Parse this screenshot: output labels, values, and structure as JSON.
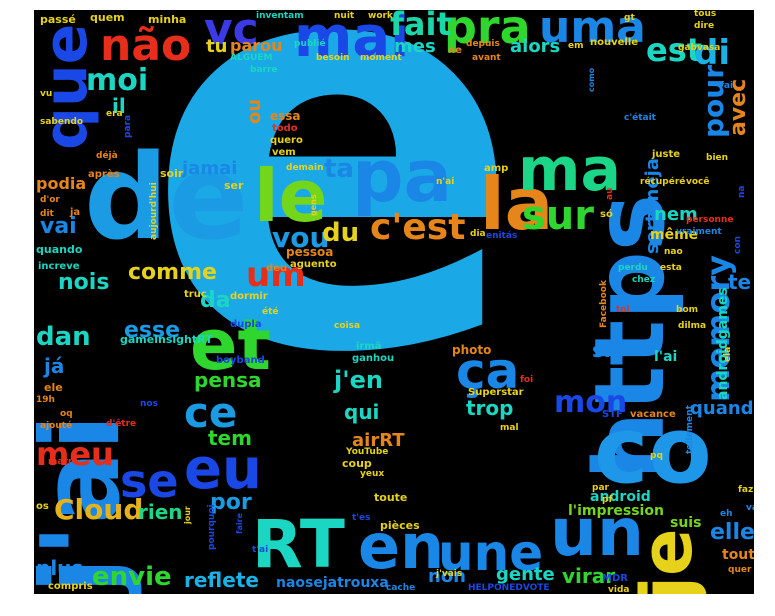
{
  "words": [
    {
      "text": "ê",
      "color": "#1aa9e6"
    },
    {
      "text": "é",
      "color": "#1aa9e6"
    },
    {
      "text": "https",
      "color": "#1a86e6"
    },
    {
      "text": "co",
      "color": "#1f97e8"
    },
    {
      "text": "j'ai",
      "color": "#1a86e6"
    },
    {
      "text": "de",
      "color": "#1a9be3"
    },
    {
      "text": "que",
      "color": "#1a48e6"
    },
    {
      "text": "je",
      "color": "#e6d21a"
    },
    {
      "text": "pa",
      "color": "#1a86e6"
    },
    {
      "text": "le",
      "color": "#74d61a"
    },
    {
      "text": "la",
      "color": "#e6861a"
    },
    {
      "text": "ma",
      "color": "#1ad686"
    },
    {
      "text": "mai",
      "color": "#1a48e6"
    },
    {
      "text": "pra",
      "color": "#2ed62e"
    },
    {
      "text": "uma",
      "color": "#1a86e6"
    },
    {
      "text": "não",
      "color": "#e62e1a"
    },
    {
      "text": "vc",
      "color": "#3a3ae6"
    },
    {
      "text": "fait",
      "color": "#1ad6a9"
    },
    {
      "text": "est",
      "color": "#1ad6c2"
    },
    {
      "text": "di",
      "color": "#1ab2e6"
    },
    {
      "text": "et",
      "color": "#2ed62e"
    },
    {
      "text": "RT",
      "color": "#1ad6c2"
    },
    {
      "text": "un",
      "color": "#1a86e6"
    },
    {
      "text": "en",
      "color": "#1a86e6"
    },
    {
      "text": "une",
      "color": "#1a86e6"
    },
    {
      "text": "eu",
      "color": "#1a48e6"
    },
    {
      "text": "se",
      "color": "#1a48e6"
    },
    {
      "text": "ce",
      "color": "#1a9be3"
    },
    {
      "text": "ça",
      "color": "#1a86e6"
    },
    {
      "text": "c'est",
      "color": "#e6861a"
    },
    {
      "text": "sur",
      "color": "#2ed62e"
    },
    {
      "text": "um",
      "color": "#e62e1a"
    },
    {
      "text": "vou",
      "color": "#1a9be3"
    },
    {
      "text": "du",
      "color": "#e6d21a"
    },
    {
      "text": "ta",
      "color": "#1a86e6"
    },
    {
      "text": "moi",
      "color": "#1ad6c2"
    },
    {
      "text": "mon",
      "color": "#1a48e6"
    },
    {
      "text": "memory",
      "color": "#1a86e6"
    },
    {
      "text": "pour",
      "color": "#1a86e6"
    },
    {
      "text": "avec",
      "color": "#e6861a"
    },
    {
      "text": "meu",
      "color": "#e62e1a"
    },
    {
      "text": "Cloud",
      "color": "#e6b21a"
    },
    {
      "text": "rien",
      "color": "#1ad686"
    },
    {
      "text": "envie",
      "color": "#2ed62e"
    },
    {
      "text": "reflete",
      "color": "#1ab2e6"
    },
    {
      "text": "por",
      "color": "#1a9be3"
    },
    {
      "text": "tem",
      "color": "#2ed62e"
    },
    {
      "text": "pensa",
      "color": "#2ed62e"
    },
    {
      "text": "da",
      "color": "#1ad6c2"
    },
    {
      "text": "esse",
      "color": "#1a9be3"
    },
    {
      "text": "comme",
      "color": "#e6d21a"
    },
    {
      "text": "nois",
      "color": "#1ad6c2"
    },
    {
      "text": "dan",
      "color": "#1ad6c2"
    },
    {
      "text": "já",
      "color": "#1a86e6"
    },
    {
      "text": "vai",
      "color": "#1a86e6"
    },
    {
      "text": "podia",
      "color": "#e6861a"
    },
    {
      "text": "jamai",
      "color": "#1a86e6"
    },
    {
      "text": "tu",
      "color": "#e6d21a"
    },
    {
      "text": "parou",
      "color": "#e6861a"
    },
    {
      "text": "mes",
      "color": "#1ad6c2"
    },
    {
      "text": "alors",
      "color": "#1ad6c2"
    },
    {
      "text": "sertaneja",
      "color": "#1a86e6"
    },
    {
      "text": "j'en",
      "color": "#1ad6c2"
    },
    {
      "text": "qui",
      "color": "#1ad6c2"
    },
    {
      "text": "trop",
      "color": "#1ad6c2"
    },
    {
      "text": "non",
      "color": "#1a86e6"
    },
    {
      "text": "gente",
      "color": "#1ad6c2"
    },
    {
      "text": "virar",
      "color": "#2ed62e"
    },
    {
      "text": "si",
      "color": "#1a86e6"
    },
    {
      "text": "quand",
      "color": "#1a86e6"
    },
    {
      "text": "elle",
      "color": "#1a86e6"
    },
    {
      "text": "te",
      "color": "#1a86e6"
    },
    {
      "text": "nem",
      "color": "#1ad6c2"
    },
    {
      "text": "même",
      "color": "#e6d21a"
    },
    {
      "text": "plus",
      "color": "#1a86e6"
    },
    {
      "text": "naosejatrouxa",
      "color": "#1a86e6"
    },
    {
      "text": "airRT",
      "color": "#e6861a"
    },
    {
      "text": "l'impression",
      "color": "#74d61a"
    },
    {
      "text": "suis",
      "color": "#74d61a"
    },
    {
      "text": "android",
      "color": "#1ad6c2"
    },
    {
      "text": "tout",
      "color": "#e6861a"
    },
    {
      "text": "androidgames",
      "color": "#1ad6c2"
    },
    {
      "text": "l'ai",
      "color": "#1ad6c2"
    },
    {
      "text": "il",
      "color": "#1ad6c2"
    },
    {
      "text": "ou",
      "color": "#e6861a"
    },
    {
      "text": "essa",
      "color": "#e6861a"
    },
    {
      "text": "todo",
      "color": "#e62e1a"
    },
    {
      "text": "quero",
      "color": "#e6d21a"
    },
    {
      "text": "vem",
      "color": "#e6d21a"
    },
    {
      "text": "ser",
      "color": "#e6d21a"
    },
    {
      "text": "soir",
      "color": "#e6d21a"
    },
    {
      "text": "après",
      "color": "#e6861a"
    },
    {
      "text": "déjà",
      "color": "#e6861a"
    },
    {
      "text": "d'or",
      "color": "#e6861a"
    },
    {
      "text": "ja",
      "color": "#e6861a"
    },
    {
      "text": "dit",
      "color": "#e6861a"
    },
    {
      "text": "quando",
      "color": "#1ad6c2"
    },
    {
      "text": "increve",
      "color": "#1ad6c2"
    },
    {
      "text": "deu",
      "color": "#e6861a"
    },
    {
      "text": "pessoa",
      "color": "#e6861a"
    },
    {
      "text": "aguento",
      "color": "#e6d21a"
    },
    {
      "text": "dormir",
      "color": "#e6d21a"
    },
    {
      "text": "truc",
      "color": "#e6d21a"
    },
    {
      "text": "dupla",
      "color": "#1a48e6"
    },
    {
      "text": "été",
      "color": "#e6d21a"
    },
    {
      "text": "gameinsightRT",
      "color": "#1ad6c2"
    },
    {
      "text": "boyband",
      "color": "#1a48e6"
    },
    {
      "text": "ele",
      "color": "#e6861a"
    },
    {
      "text": "19h",
      "color": "#e6861a"
    },
    {
      "text": "oq",
      "color": "#e6861a"
    },
    {
      "text": "ajouté",
      "color": "#e6861a"
    },
    {
      "text": "d'être",
      "color": "#e62e1a"
    },
    {
      "text": "marre",
      "color": "#e62e1a"
    },
    {
      "text": "os",
      "color": "#e6d21a"
    },
    {
      "text": "compris",
      "color": "#e6d21a"
    },
    {
      "text": "cache",
      "color": "#1a86e6"
    },
    {
      "text": "HELPONEDVOTE",
      "color": "#1a48e6"
    },
    {
      "text": "j'vais",
      "color": "#e6d21a"
    },
    {
      "text": "MDR",
      "color": "#1a48e6"
    },
    {
      "text": "vida",
      "color": "#e6d21a"
    },
    {
      "text": "quer",
      "color": "#e6861a"
    },
    {
      "text": "pièces",
      "color": "#e6d21a"
    },
    {
      "text": "toute",
      "color": "#e6d21a"
    },
    {
      "text": "t'es",
      "color": "#1a48e6"
    },
    {
      "text": "t'ai",
      "color": "#1a48e6"
    },
    {
      "text": "coup",
      "color": "#e6d21a"
    },
    {
      "text": "YouTube",
      "color": "#e6d21a"
    },
    {
      "text": "yeux",
      "color": "#e6d21a"
    },
    {
      "text": "irmã",
      "color": "#1ad6c2"
    },
    {
      "text": "ganhou",
      "color": "#1ad6c2"
    },
    {
      "text": "coisa",
      "color": "#e6d21a"
    },
    {
      "text": "photo",
      "color": "#e6861a"
    },
    {
      "text": "Superstar",
      "color": "#e6d21a"
    },
    {
      "text": "mal",
      "color": "#e6d21a"
    },
    {
      "text": "foi",
      "color": "#e62e1a"
    },
    {
      "text": "STF",
      "color": "#1a48e6"
    },
    {
      "text": "vacance",
      "color": "#e6861a"
    },
    {
      "text": "pq",
      "color": "#e6d21a"
    },
    {
      "text": "faz",
      "color": "#e6d21a"
    },
    {
      "text": "eh",
      "color": "#1a86e6"
    },
    {
      "text": "va",
      "color": "#1a86e6"
    },
    {
      "text": "par",
      "color": "#e6d21a"
    },
    {
      "text": "pf",
      "color": "#e6d21a"
    },
    {
      "text": "ela",
      "color": "#e6d21a"
    },
    {
      "text": "dilma",
      "color": "#e6d21a"
    },
    {
      "text": "bom",
      "color": "#e6d21a"
    },
    {
      "text": "toi",
      "color": "#e62e1a"
    },
    {
      "text": "perdu",
      "color": "#1ad6c2"
    },
    {
      "text": "chez",
      "color": "#1ad6c2"
    },
    {
      "text": "nao",
      "color": "#e6d21a"
    },
    {
      "text": "esta",
      "color": "#e6d21a"
    },
    {
      "text": "Facebook",
      "color": "#e6861a"
    },
    {
      "text": "vraiment",
      "color": "#1a86e6"
    },
    {
      "text": "con",
      "color": "#1a48e6"
    },
    {
      "text": "personne",
      "color": "#e62e1a"
    },
    {
      "text": "juste",
      "color": "#e6d21a"
    },
    {
      "text": "bien",
      "color": "#e6d21a"
    },
    {
      "text": "récupéré",
      "color": "#e6d21a"
    },
    {
      "text": "você",
      "color": "#e6d21a"
    },
    {
      "text": "na",
      "color": "#1a48e6"
    },
    {
      "text": "só",
      "color": "#e6d21a"
    },
    {
      "text": "au",
      "color": "#e62e1a"
    },
    {
      "text": "fai",
      "color": "#1a86e6"
    },
    {
      "text": "c'était",
      "color": "#1a86e6"
    },
    {
      "text": "como",
      "color": "#1a86e6"
    },
    {
      "text": "amp",
      "color": "#e6d21a"
    },
    {
      "text": "n'ai",
      "color": "#e6d21a"
    },
    {
      "text": "dia",
      "color": "#e6d21a"
    },
    {
      "text": "enitás",
      "color": "#1a48e6"
    },
    {
      "text": "gens",
      "color": "#e6d21a"
    },
    {
      "text": "demain",
      "color": "#e6d21a"
    },
    {
      "text": "aujourd'hui",
      "color": "#e6d21a"
    },
    {
      "text": "passé",
      "color": "#e6d21a"
    },
    {
      "text": "quem",
      "color": "#e6d21a"
    },
    {
      "text": "minha",
      "color": "#e6d21a"
    },
    {
      "text": "inventam",
      "color": "#1ad6c2"
    },
    {
      "text": "nuit",
      "color": "#e6d21a"
    },
    {
      "text": "work",
      "color": "#e6d21a"
    },
    {
      "text": "publié",
      "color": "#1ad6c2"
    },
    {
      "text": "ALGUEM",
      "color": "#1ad6c2"
    },
    {
      "text": "besoin",
      "color": "#e6d21a"
    },
    {
      "text": "moment",
      "color": "#e6d21a"
    },
    {
      "text": "barre",
      "color": "#1ad6c2"
    },
    {
      "text": "ne",
      "color": "#e6861a"
    },
    {
      "text": "depuis",
      "color": "#e6861a"
    },
    {
      "text": "avant",
      "color": "#e6861a"
    },
    {
      "text": "em",
      "color": "#e6d21a"
    },
    {
      "text": "nouvelle",
      "color": "#e6d21a"
    },
    {
      "text": "gt",
      "color": "#e6d21a"
    },
    {
      "text": "tous",
      "color": "#e6d21a"
    },
    {
      "text": "dire",
      "color": "#e6d21a"
    },
    {
      "text": "gabvasa",
      "color": "#e6d21a"
    },
    {
      "text": "vu",
      "color": "#e6d21a"
    },
    {
      "text": "sabendo",
      "color": "#e6d21a"
    },
    {
      "text": "era",
      "color": "#e6d21a"
    },
    {
      "text": "para",
      "color": "#1a48e6"
    },
    {
      "text": "nos",
      "color": "#1a48e6"
    },
    {
      "text": "pourquoi",
      "color": "#1a48e6"
    },
    {
      "text": "jour",
      "color": "#e6d21a"
    },
    {
      "text": "faire",
      "color": "#1a48e6"
    },
    {
      "text": "tellement",
      "color": "#1a86e6"
    }
  ]
}
